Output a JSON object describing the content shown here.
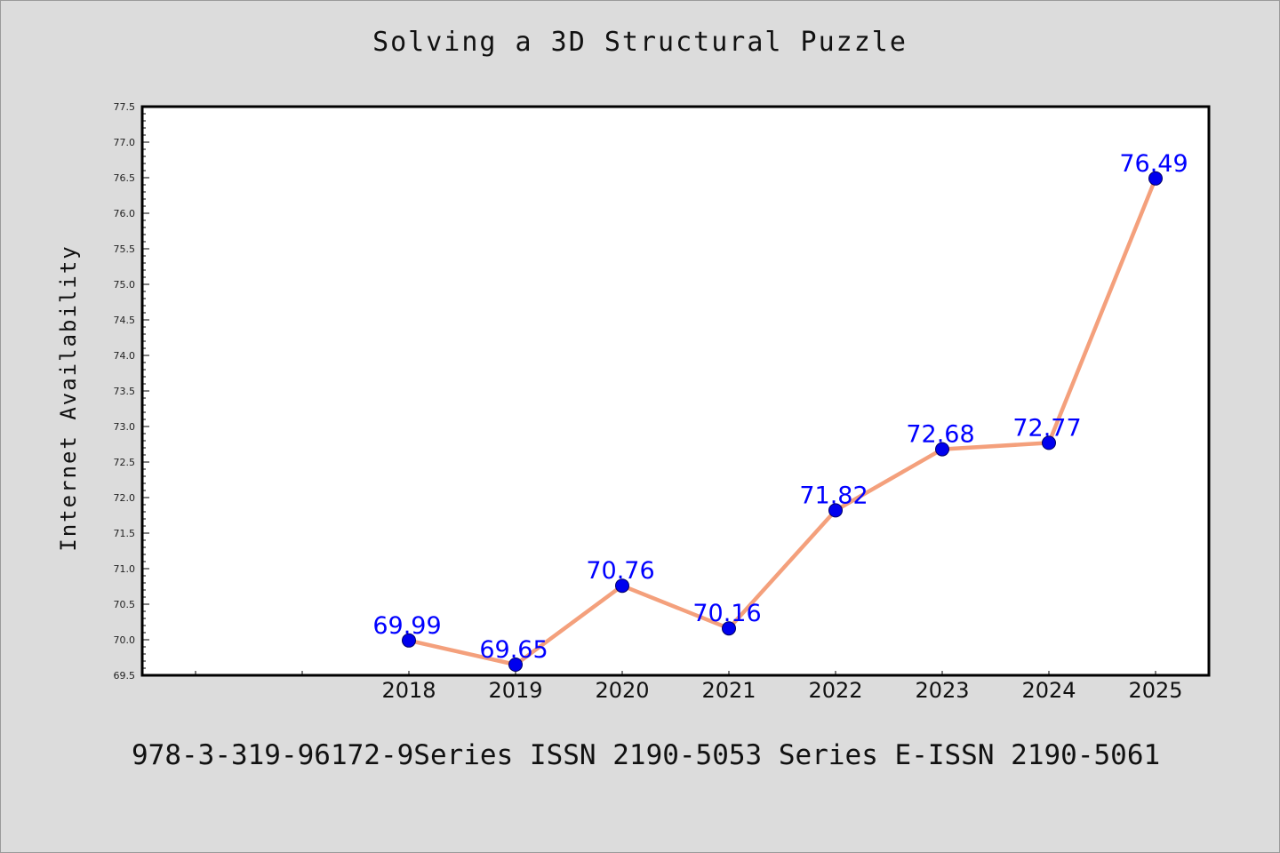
{
  "chart_data": {
    "type": "line",
    "title": "Solving a 3D Structural Puzzle",
    "footer": "978-3-319-96172-9Series ISSN 2190-5053 Series E-ISSN 2190-5061",
    "xlabel": "",
    "ylabel": "Internet Availability",
    "x_categories": [
      "2018",
      "2019",
      "2020",
      "2021",
      "2022",
      "2023",
      "2024",
      "2025"
    ],
    "x_axis_slots_before_data": 2,
    "values": [
      69.99,
      69.65,
      70.76,
      70.16,
      71.82,
      72.68,
      72.77,
      76.49
    ],
    "value_labels": [
      "69.99",
      "69.65",
      "70.76",
      "70.16",
      "71.82",
      "72.68",
      "72.77",
      "76.49"
    ],
    "ylim": [
      69.5,
      77.5
    ],
    "y_major_step": 0.5,
    "y_tick_labels": [
      "69.5",
      "70.0",
      "70.5",
      "71.0",
      "71.5",
      "72.0",
      "72.5",
      "73.0",
      "73.5",
      "74.0",
      "74.5",
      "75.0",
      "75.5",
      "76.0",
      "76.5",
      "77.0",
      "77.5"
    ],
    "grid": false,
    "colors": {
      "line": "#f4a07c",
      "marker": "#0000ee",
      "data_label": "#0000ff",
      "background": "#dcdcdc",
      "plot_background": "#ffffff"
    }
  }
}
